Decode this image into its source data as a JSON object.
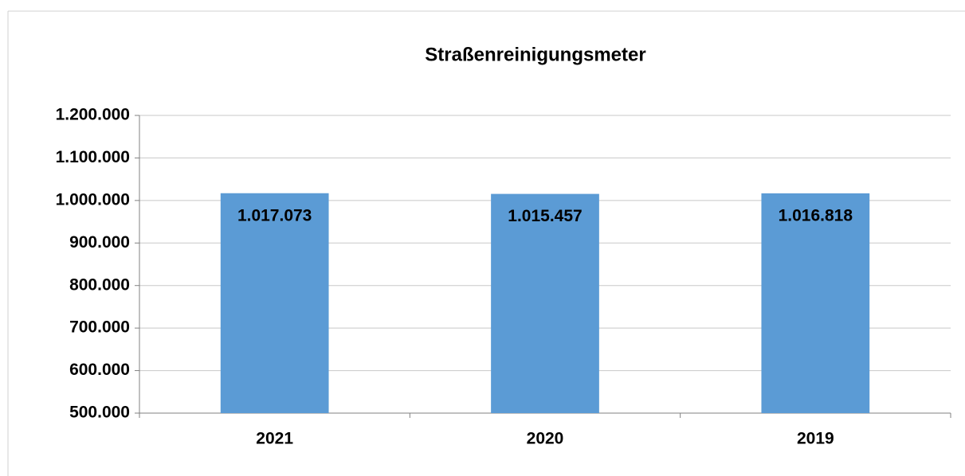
{
  "chart_data": {
    "type": "bar",
    "title": "Straßenreinigungsmeter",
    "categories": [
      "2021",
      "2020",
      "2019"
    ],
    "values": [
      1017073,
      1015457,
      1016818
    ],
    "value_labels": [
      "1.017.073",
      "1.015.457",
      "1.016.818"
    ],
    "color": "#5b9bd5",
    "ylim": [
      500000,
      1200000
    ],
    "yticks": [
      {
        "value": 500000,
        "label": "500.000"
      },
      {
        "value": 600000,
        "label": "600.000"
      },
      {
        "value": 700000,
        "label": "700.000"
      },
      {
        "value": 800000,
        "label": "800.000"
      },
      {
        "value": 900000,
        "label": "900.000"
      },
      {
        "value": 1000000,
        "label": "1.000.000"
      },
      {
        "value": 1100000,
        "label": "1.100.000"
      },
      {
        "value": 1200000,
        "label": "1.200.000"
      }
    ],
    "grid": true
  }
}
